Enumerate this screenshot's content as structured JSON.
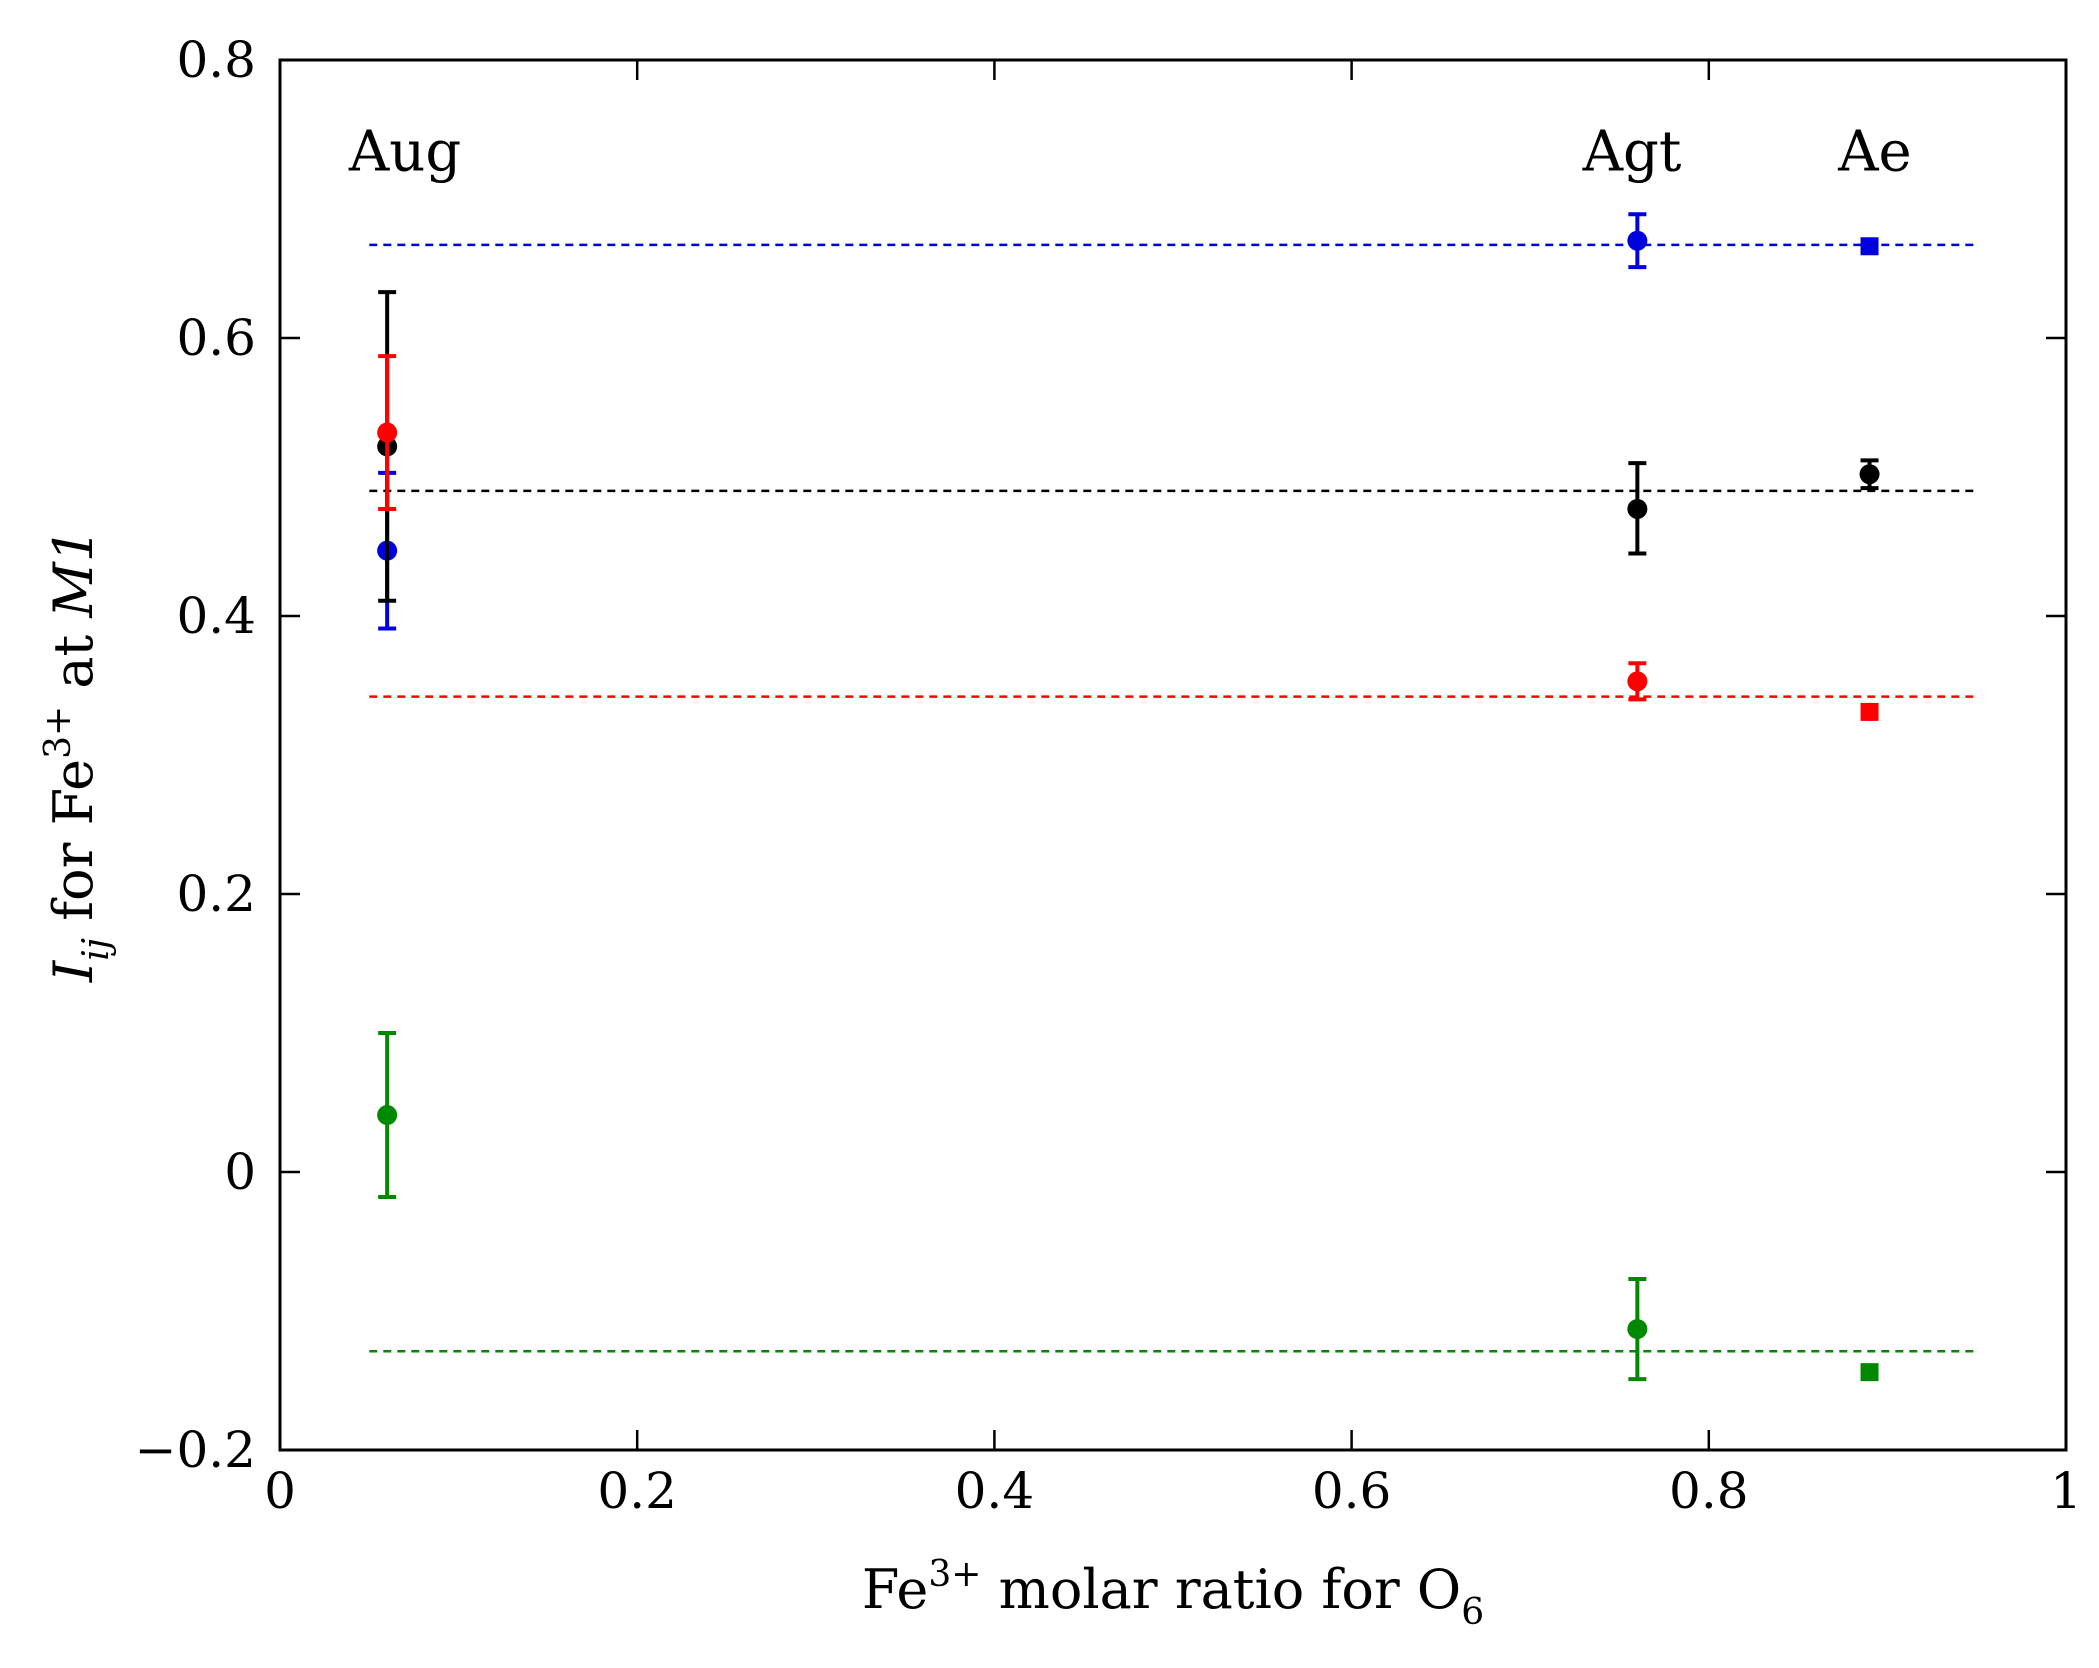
{
  "chart_data": {
    "type": "scatter",
    "title": "",
    "xlabel": {
      "pre": "Fe",
      "sup": "3+",
      "mid": " molar ratio for O",
      "sub": "6"
    },
    "ylabel": {
      "i": "I",
      "sub": "ij",
      "mid": " for Fe",
      "sup": "3+",
      "post": " at ",
      "site": "M1"
    },
    "xlim": [
      0,
      1
    ],
    "ylim": [
      -0.2,
      0.8
    ],
    "xticks": [
      0,
      0.2,
      0.4,
      0.6,
      0.8,
      1
    ],
    "xtick_labels": [
      "0",
      "0.2",
      "0.4",
      "0.6",
      "0.8",
      "1"
    ],
    "yticks": [
      -0.2,
      0,
      0.2,
      0.4,
      0.6,
      0.8
    ],
    "ytick_labels": [
      "−0.2",
      "0",
      "0.2",
      "0.4",
      "0.6",
      "0.8"
    ],
    "grid": false,
    "annotations": [
      {
        "text": "Aug",
        "x": 0.07,
        "y": 0.735
      },
      {
        "text": "Agt",
        "x": 0.757,
        "y": 0.735
      },
      {
        "text": "Ae",
        "x": 0.893,
        "y": 0.735
      }
    ],
    "series": [
      {
        "name": "blue",
        "color": "#0000dd",
        "reference_line": {
          "y": 0.667,
          "x_range": [
            0.05,
            0.95
          ]
        },
        "points": [
          {
            "x": 0.06,
            "y": 0.447,
            "err_low": 0.391,
            "err_high": 0.503,
            "marker": "circle"
          },
          {
            "x": 0.76,
            "y": 0.67,
            "err_low": 0.651,
            "err_high": 0.689,
            "marker": "circle"
          },
          {
            "x": 0.89,
            "y": 0.666,
            "marker": "square"
          }
        ]
      },
      {
        "name": "black",
        "color": "#000000",
        "reference_line": {
          "y": 0.49,
          "x_range": [
            0.05,
            0.95
          ]
        },
        "points": [
          {
            "x": 0.06,
            "y": 0.522,
            "err_low": 0.411,
            "err_high": 0.633,
            "marker": "circle"
          },
          {
            "x": 0.76,
            "y": 0.477,
            "err_low": 0.445,
            "err_high": 0.51,
            "marker": "circle"
          },
          {
            "x": 0.89,
            "y": 0.502,
            "err_low": 0.492,
            "err_high": 0.512,
            "marker": "circle"
          }
        ]
      },
      {
        "name": "red",
        "color": "#ff0000",
        "reference_line": {
          "y": 0.342,
          "x_range": [
            0.05,
            0.95
          ]
        },
        "points": [
          {
            "x": 0.06,
            "y": 0.532,
            "err_low": 0.477,
            "err_high": 0.587,
            "marker": "circle"
          },
          {
            "x": 0.76,
            "y": 0.353,
            "err_low": 0.34,
            "err_high": 0.366,
            "marker": "circle"
          },
          {
            "x": 0.89,
            "y": 0.331,
            "marker": "square"
          }
        ]
      },
      {
        "name": "green",
        "color": "#008800",
        "reference_line": {
          "y": -0.129,
          "x_range": [
            0.05,
            0.95
          ]
        },
        "points": [
          {
            "x": 0.06,
            "y": 0.041,
            "err_low": -0.018,
            "err_high": 0.1,
            "marker": "circle"
          },
          {
            "x": 0.76,
            "y": -0.113,
            "err_low": -0.149,
            "err_high": -0.077,
            "marker": "circle"
          },
          {
            "x": 0.89,
            "y": -0.144,
            "marker": "square"
          }
        ]
      }
    ]
  }
}
